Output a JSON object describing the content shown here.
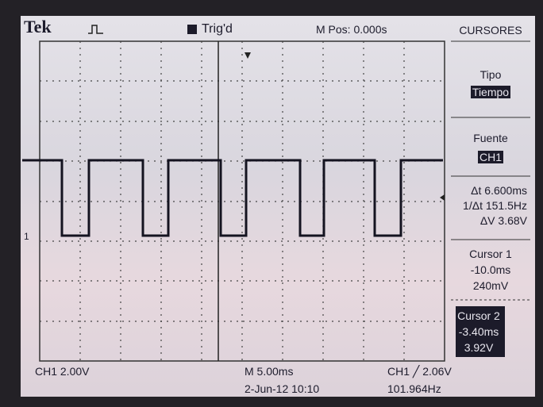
{
  "header": {
    "brand": "Tek",
    "trigger_status": "Trig'd",
    "position": "M Pos: 0.000s"
  },
  "channel_marker": "1",
  "menu": {
    "title": "CURSORES",
    "type": {
      "label": "Tipo",
      "value": "Tiempo"
    },
    "source": {
      "label": "Fuente",
      "value": "CH1"
    },
    "readouts": [
      "Δt 6.600ms",
      "1/Δt 151.5Hz",
      "ΔV 3.68V"
    ],
    "cursor1": {
      "label": "Cursor 1",
      "time": "-10.0ms",
      "voltage": "240mV"
    },
    "cursor2": {
      "label": "Cursor 2",
      "time": "-3.40ms",
      "voltage": "3.92V"
    }
  },
  "footer": {
    "channel_scale": "CH1  2.00V",
    "time_scale": "M 5.00ms",
    "trigger": "CH1 ╱ 2.06V",
    "datetime": "2-Jun-12 10:10",
    "frequency": "101.964Hz"
  }
}
